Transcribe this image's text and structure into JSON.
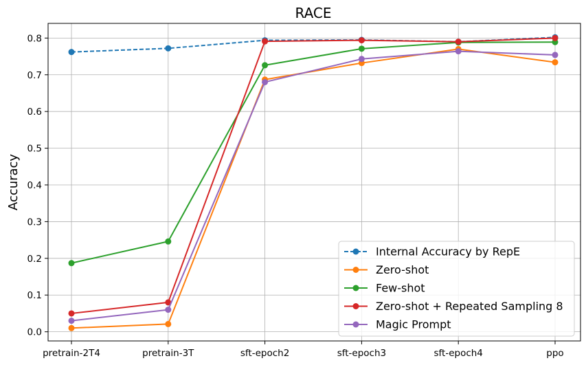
{
  "chart_data": {
    "type": "line",
    "title": "RACE",
    "xlabel": "",
    "ylabel": "Accuracy",
    "categories": [
      "pretrain-2T4",
      "pretrain-3T",
      "sft-epoch2",
      "sft-epoch3",
      "sft-epoch4",
      "ppo"
    ],
    "ylim": [
      -0.025,
      0.84
    ],
    "yticks": [
      0.0,
      0.1,
      0.2,
      0.3,
      0.4,
      0.5,
      0.6,
      0.7,
      0.8
    ],
    "grid": true,
    "legend_position": "bottom-right",
    "series": [
      {
        "name": "Internal Accuracy by RepE",
        "color": "#1f77b4",
        "dashed": true,
        "values": [
          0.762,
          0.772,
          0.794,
          0.795,
          0.79,
          0.802
        ]
      },
      {
        "name": "Zero-shot",
        "color": "#ff7f0e",
        "dashed": false,
        "values": [
          0.01,
          0.021,
          0.687,
          0.732,
          0.77,
          0.734
        ]
      },
      {
        "name": "Few-shot",
        "color": "#2ca02c",
        "dashed": false,
        "values": [
          0.187,
          0.246,
          0.726,
          0.771,
          0.788,
          0.789
        ]
      },
      {
        "name": "Zero-shot + Repeated Sampling 8",
        "color": "#d62728",
        "dashed": false,
        "values": [
          0.05,
          0.08,
          0.791,
          0.794,
          0.79,
          0.8
        ]
      },
      {
        "name": "Magic Prompt",
        "color": "#9467bd",
        "dashed": false,
        "values": [
          0.03,
          0.06,
          0.68,
          0.743,
          0.764,
          0.754
        ]
      }
    ]
  }
}
